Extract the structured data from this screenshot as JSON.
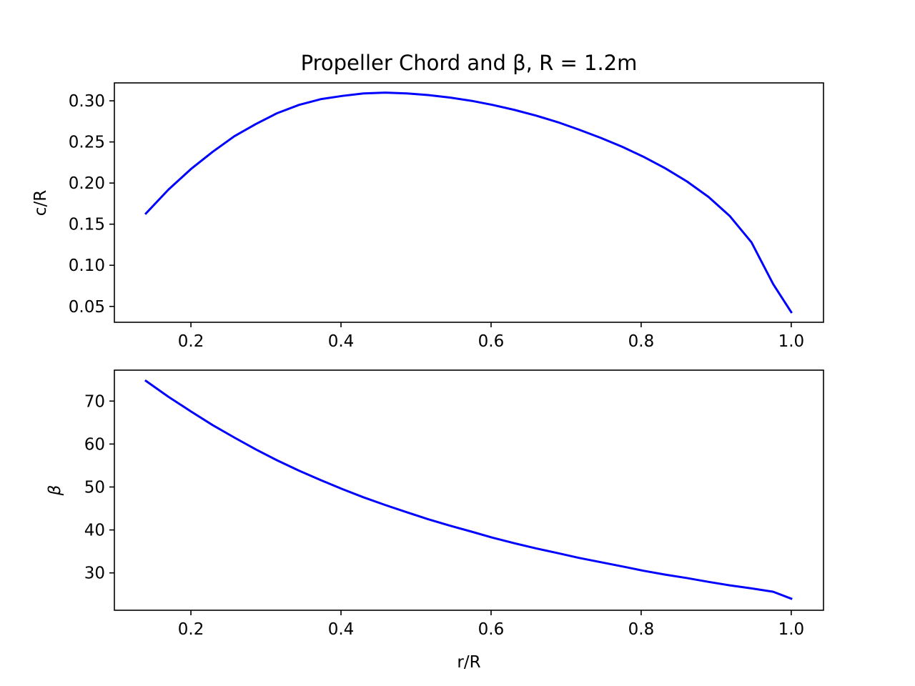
{
  "chart_data": [
    {
      "type": "line",
      "title": "Propeller Chord and β, R = 1.2m",
      "xlabel": "",
      "ylabel": "c/R",
      "xlim": [
        0.098,
        1.043
      ],
      "ylim": [
        0.0307,
        0.3218
      ],
      "xticks": [
        "0.2",
        "0.4",
        "0.6",
        "0.8",
        "1.0"
      ],
      "yticks": [
        "0.05",
        "0.10",
        "0.15",
        "0.20",
        "0.25",
        "0.30"
      ],
      "grid": false,
      "legend": "none",
      "series": [
        {
          "color": "#0000ff",
          "x": [
            0.14,
            0.17,
            0.2,
            0.229,
            0.258,
            0.287,
            0.315,
            0.344,
            0.373,
            0.402,
            0.43,
            0.459,
            0.488,
            0.516,
            0.545,
            0.574,
            0.602,
            0.631,
            0.66,
            0.689,
            0.717,
            0.746,
            0.775,
            0.803,
            0.832,
            0.861,
            0.89,
            0.918,
            0.947,
            0.976,
            1.0
          ],
          "y": [
            0.163,
            0.192,
            0.217,
            0.238,
            0.257,
            0.272,
            0.285,
            0.295,
            0.302,
            0.306,
            0.309,
            0.31,
            0.309,
            0.307,
            0.304,
            0.3,
            0.295,
            0.289,
            0.282,
            0.274,
            0.265,
            0.255,
            0.244,
            0.232,
            0.218,
            0.202,
            0.183,
            0.16,
            0.128,
            0.077,
            0.043
          ]
        }
      ]
    },
    {
      "type": "line",
      "title": "",
      "xlabel": "r/R",
      "ylabel": "β",
      "xlim": [
        0.098,
        1.043
      ],
      "ylim": [
        21.3,
        77.2
      ],
      "xticks": [
        "0.2",
        "0.4",
        "0.6",
        "0.8",
        "1.0"
      ],
      "yticks": [
        "30",
        "40",
        "50",
        "60",
        "70"
      ],
      "grid": false,
      "legend": "none",
      "series": [
        {
          "color": "#0000ff",
          "x": [
            0.14,
            0.17,
            0.2,
            0.229,
            0.258,
            0.287,
            0.315,
            0.344,
            0.373,
            0.402,
            0.43,
            0.459,
            0.488,
            0.516,
            0.545,
            0.574,
            0.602,
            0.631,
            0.66,
            0.689,
            0.717,
            0.746,
            0.775,
            0.803,
            0.832,
            0.861,
            0.89,
            0.918,
            0.947,
            0.976,
            1.0
          ],
          "y": [
            74.7,
            71.0,
            67.6,
            64.4,
            61.5,
            58.7,
            56.2,
            53.8,
            51.6,
            49.5,
            47.6,
            45.8,
            44.1,
            42.5,
            41.0,
            39.6,
            38.2,
            36.9,
            35.7,
            34.6,
            33.5,
            32.5,
            31.5,
            30.5,
            29.6,
            28.8,
            27.9,
            27.1,
            26.4,
            25.6,
            24.0
          ]
        }
      ]
    }
  ]
}
